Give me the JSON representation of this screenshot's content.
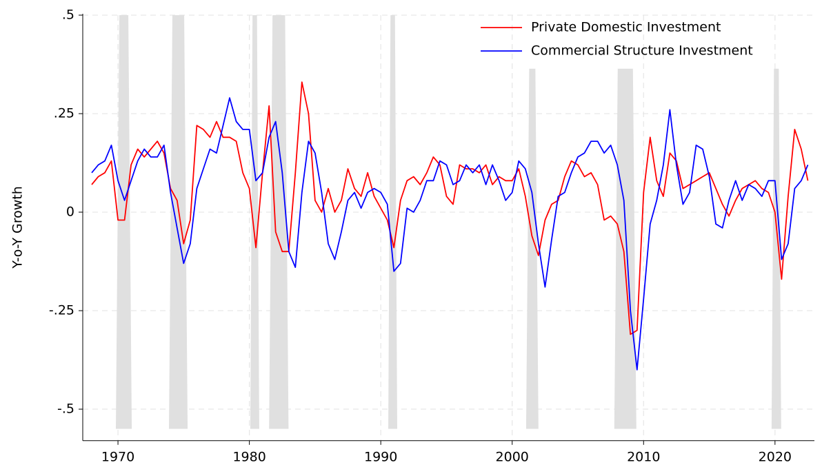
{
  "chart_data": {
    "type": "line",
    "y_label": "Y-o-Y Growth",
    "x": [
      1968,
      1968.5,
      1969,
      1969.5,
      1970,
      1970.5,
      1971,
      1971.5,
      1972,
      1972.5,
      1973,
      1973.5,
      1974,
      1974.5,
      1975,
      1975.5,
      1976,
      1976.5,
      1977,
      1977.5,
      1978,
      1978.5,
      1979,
      1979.5,
      1980,
      1980.5,
      1981,
      1981.5,
      1982,
      1982.5,
      1983,
      1983.5,
      1984,
      1984.5,
      1985,
      1985.5,
      1986,
      1986.5,
      1987,
      1987.5,
      1988,
      1988.5,
      1989,
      1989.5,
      1990,
      1990.5,
      1991,
      1991.5,
      1992,
      1992.5,
      1993,
      1993.5,
      1994,
      1994.5,
      1995,
      1995.5,
      1996,
      1996.5,
      1997,
      1997.5,
      1998,
      1998.5,
      1999,
      1999.5,
      2000,
      2000.5,
      2001,
      2001.5,
      2002,
      2002.5,
      2003,
      2003.5,
      2004,
      2004.5,
      2005,
      2005.5,
      2006,
      2006.5,
      2007,
      2007.5,
      2008,
      2008.5,
      2009,
      2009.5,
      2010,
      2010.5,
      2011,
      2011.5,
      2012,
      2012.5,
      2013,
      2013.5,
      2014,
      2014.5,
      2015,
      2015.5,
      2016,
      2016.5,
      2017,
      2017.5,
      2018,
      2018.5,
      2019,
      2019.5,
      2020,
      2020.5,
      2021,
      2021.5,
      2022,
      2022.5
    ],
    "series": [
      {
        "name": "Private Domestic Investment",
        "color": "#ff0000",
        "values": [
          0.07,
          0.09,
          0.1,
          0.13,
          -0.02,
          -0.02,
          0.12,
          0.16,
          0.14,
          0.16,
          0.18,
          0.15,
          0.06,
          0.03,
          -0.08,
          -0.02,
          0.22,
          0.21,
          0.19,
          0.23,
          0.19,
          0.19,
          0.18,
          0.1,
          0.06,
          -0.09,
          0.1,
          0.27,
          -0.05,
          -0.1,
          -0.1,
          0.1,
          0.33,
          0.25,
          0.03,
          0.0,
          0.06,
          0.0,
          0.03,
          0.11,
          0.06,
          0.04,
          0.1,
          0.04,
          0.01,
          -0.02,
          -0.09,
          0.03,
          0.08,
          0.09,
          0.07,
          0.1,
          0.14,
          0.12,
          0.04,
          0.02,
          0.12,
          0.11,
          0.11,
          0.1,
          0.12,
          0.07,
          0.09,
          0.08,
          0.08,
          0.11,
          0.04,
          -0.06,
          -0.11,
          -0.02,
          0.02,
          0.03,
          0.09,
          0.13,
          0.12,
          0.09,
          0.1,
          0.07,
          -0.02,
          -0.01,
          -0.03,
          -0.1,
          -0.31,
          -0.3,
          0.05,
          0.19,
          0.08,
          0.04,
          0.15,
          0.13,
          0.06,
          0.07,
          0.08,
          0.09,
          0.1,
          0.06,
          0.02,
          -0.01,
          0.03,
          0.06,
          0.07,
          0.08,
          0.06,
          0.05,
          0.0,
          -0.17,
          0.04,
          0.21,
          0.16,
          0.08
        ]
      },
      {
        "name": "Commercial Structure Investment",
        "color": "#0000ff",
        "values": [
          0.1,
          0.12,
          0.13,
          0.17,
          0.08,
          0.03,
          0.08,
          0.13,
          0.16,
          0.14,
          0.14,
          0.17,
          0.05,
          -0.04,
          -0.13,
          -0.08,
          0.06,
          0.11,
          0.16,
          0.15,
          0.22,
          0.29,
          0.23,
          0.21,
          0.21,
          0.08,
          0.1,
          0.19,
          0.23,
          0.1,
          -0.1,
          -0.14,
          0.05,
          0.18,
          0.15,
          0.05,
          -0.08,
          -0.12,
          -0.05,
          0.03,
          0.05,
          0.01,
          0.05,
          0.06,
          0.05,
          0.02,
          -0.15,
          -0.13,
          0.01,
          0.0,
          0.03,
          0.08,
          0.08,
          0.13,
          0.12,
          0.07,
          0.08,
          0.12,
          0.1,
          0.12,
          0.07,
          0.12,
          0.08,
          0.03,
          0.05,
          0.13,
          0.11,
          0.05,
          -0.08,
          -0.19,
          -0.07,
          0.04,
          0.05,
          0.1,
          0.14,
          0.15,
          0.18,
          0.18,
          0.15,
          0.17,
          0.12,
          0.03,
          -0.25,
          -0.4,
          -0.22,
          -0.03,
          0.03,
          0.12,
          0.26,
          0.12,
          0.02,
          0.05,
          0.17,
          0.16,
          0.09,
          -0.03,
          -0.04,
          0.03,
          0.08,
          0.03,
          0.07,
          0.06,
          0.04,
          0.08,
          0.08,
          -0.12,
          -0.08,
          0.06,
          0.08,
          0.12
        ]
      }
    ],
    "recessions": [
      {
        "start": 1969.84,
        "end": 1971.05,
        "top": 0.5,
        "bottom": -0.55
      },
      {
        "start": 1973.88,
        "end": 1975.3,
        "top": 0.5,
        "bottom": -0.55
      },
      {
        "start": 1980.07,
        "end": 1980.75,
        "top": 0.5,
        "bottom": -0.55
      },
      {
        "start": 1981.5,
        "end": 1982.98,
        "top": 0.5,
        "bottom": -0.55
      },
      {
        "start": 1990.57,
        "end": 1991.25,
        "top": 0.5,
        "bottom": -0.55
      },
      {
        "start": 2001.06,
        "end": 2002.0,
        "top": 0.364,
        "bottom": -0.55
      },
      {
        "start": 2007.77,
        "end": 2009.45,
        "top": 0.364,
        "bottom": -0.55
      },
      {
        "start": 2019.74,
        "end": 2020.47,
        "top": 0.364,
        "bottom": -0.55
      }
    ],
    "xlim": [
      1967.32,
      2023.0
    ],
    "xticks": [
      1970,
      1980,
      1990,
      2000,
      2010,
      2020
    ],
    "ylim": [
      -0.58,
      0.5
    ],
    "yticks": [
      {
        "value": 0.5,
        "label": ".5"
      },
      {
        "value": 0.25,
        "label": ".25"
      },
      0,
      {
        "value": -0.25,
        "label": "-.25"
      },
      {
        "value": -0.5,
        "label": "-.5"
      }
    ],
    "grid": true,
    "legend": "top-right"
  }
}
